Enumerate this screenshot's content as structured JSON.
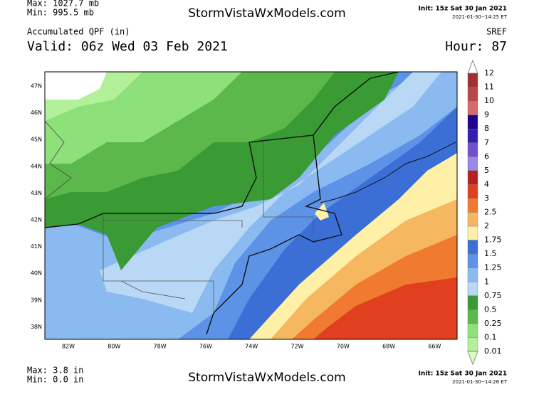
{
  "header": {
    "max_pressure": "Max: 1027.7 mb",
    "min_pressure": "Min: 995.5 mb",
    "site": "StormVistaWxModels.com",
    "init": "Init: 15z Sat 30 Jan 2021",
    "init_stamp": "2021-01-30--14:25 ET",
    "product": "Accumulated QPF (in)",
    "model": "SREF",
    "valid": "Valid: 06z Wed 03 Feb 2021",
    "hour": "Hour: 87"
  },
  "map": {
    "lat_labels": [
      "47N",
      "46N",
      "45N",
      "44N",
      "43N",
      "42N",
      "41N",
      "40N",
      "39N",
      "38N"
    ],
    "lon_labels": [
      "82W",
      "80W",
      "78W",
      "76W",
      "74W",
      "72W",
      "70W",
      "68W",
      "66W"
    ]
  },
  "legend": {
    "entries": [
      {
        "label": "12",
        "color": "#a03030"
      },
      {
        "label": "11",
        "color": "#b84848"
      },
      {
        "label": "10",
        "color": "#d86a6a"
      },
      {
        "label": "9",
        "color": "#200090"
      },
      {
        "label": "8",
        "color": "#3020b0"
      },
      {
        "label": "7",
        "color": "#7050d0"
      },
      {
        "label": "6",
        "color": "#9a88e8"
      },
      {
        "label": "5",
        "color": "#b82020"
      },
      {
        "label": "4",
        "color": "#e04020"
      },
      {
        "label": "3",
        "color": "#f07a30"
      },
      {
        "label": "2.5",
        "color": "#f5b860"
      },
      {
        "label": "2",
        "color": "#fff0a8"
      },
      {
        "label": "1.75",
        "color": "#3c6fd6"
      },
      {
        "label": "1.5",
        "color": "#5c93e6"
      },
      {
        "label": "1.25",
        "color": "#8bbaf0"
      },
      {
        "label": "1",
        "color": "#b8d8f5"
      },
      {
        "label": "0.75",
        "color": "#3a9a34"
      },
      {
        "label": "0.5",
        "color": "#5cb84a"
      },
      {
        "label": "0.25",
        "color": "#8ee07a"
      },
      {
        "label": "0.1",
        "color": "#b3f09a"
      },
      {
        "label": "0.01",
        "color": "#d9ffc0"
      }
    ]
  },
  "footer": {
    "max_qpf": "Max: 3.8 in",
    "min_qpf": "Min: 0.0 in",
    "site": "StormVistaWxModels.com",
    "init": "Init: 15z Sat 30 Jan 2021",
    "init_stamp": "2021-01-30--14:26 ET"
  }
}
